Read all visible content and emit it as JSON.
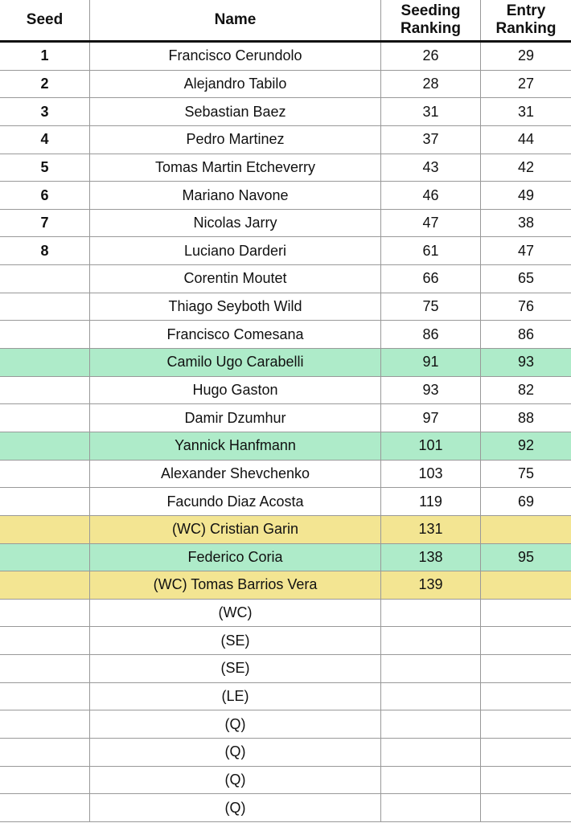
{
  "colors": {
    "green": "#aeebc9",
    "yellow": "#f3e592"
  },
  "headers": [
    "Seed",
    "Name",
    "Seeding Ranking",
    "Entry Ranking"
  ],
  "rows": [
    {
      "seed": "1",
      "name": "Francisco Cerundolo",
      "seeding": "26",
      "entry": "29",
      "hl": ""
    },
    {
      "seed": "2",
      "name": "Alejandro Tabilo",
      "seeding": "28",
      "entry": "27",
      "hl": ""
    },
    {
      "seed": "3",
      "name": "Sebastian Baez",
      "seeding": "31",
      "entry": "31",
      "hl": ""
    },
    {
      "seed": "4",
      "name": "Pedro Martinez",
      "seeding": "37",
      "entry": "44",
      "hl": ""
    },
    {
      "seed": "5",
      "name": "Tomas Martin Etcheverry",
      "seeding": "43",
      "entry": "42",
      "hl": ""
    },
    {
      "seed": "6",
      "name": "Mariano Navone",
      "seeding": "46",
      "entry": "49",
      "hl": ""
    },
    {
      "seed": "7",
      "name": "Nicolas Jarry",
      "seeding": "47",
      "entry": "38",
      "hl": ""
    },
    {
      "seed": "8",
      "name": "Luciano Darderi",
      "seeding": "61",
      "entry": "47",
      "hl": ""
    },
    {
      "seed": "",
      "name": "Corentin Moutet",
      "seeding": "66",
      "entry": "65",
      "hl": ""
    },
    {
      "seed": "",
      "name": "Thiago Seyboth Wild",
      "seeding": "75",
      "entry": "76",
      "hl": ""
    },
    {
      "seed": "",
      "name": "Francisco Comesana",
      "seeding": "86",
      "entry": "86",
      "hl": ""
    },
    {
      "seed": "",
      "name": "Camilo Ugo Carabelli",
      "seeding": "91",
      "entry": "93",
      "hl": "green"
    },
    {
      "seed": "",
      "name": "Hugo Gaston",
      "seeding": "93",
      "entry": "82",
      "hl": ""
    },
    {
      "seed": "",
      "name": "Damir Dzumhur",
      "seeding": "97",
      "entry": "88",
      "hl": ""
    },
    {
      "seed": "",
      "name": "Yannick Hanfmann",
      "seeding": "101",
      "entry": "92",
      "hl": "green"
    },
    {
      "seed": "",
      "name": "Alexander Shevchenko",
      "seeding": "103",
      "entry": "75",
      "hl": ""
    },
    {
      "seed": "",
      "name": "Facundo Diaz Acosta",
      "seeding": "119",
      "entry": "69",
      "hl": ""
    },
    {
      "seed": "",
      "name": "(WC) Cristian Garin",
      "seeding": "131",
      "entry": "",
      "hl": "yellow"
    },
    {
      "seed": "",
      "name": "Federico Coria",
      "seeding": "138",
      "entry": "95",
      "hl": "green"
    },
    {
      "seed": "",
      "name": "(WC) Tomas Barrios Vera",
      "seeding": "139",
      "entry": "",
      "hl": "yellow"
    },
    {
      "seed": "",
      "name": "(WC)",
      "seeding": "",
      "entry": "",
      "hl": ""
    },
    {
      "seed": "",
      "name": "(SE)",
      "seeding": "",
      "entry": "",
      "hl": ""
    },
    {
      "seed": "",
      "name": "(SE)",
      "seeding": "",
      "entry": "",
      "hl": ""
    },
    {
      "seed": "",
      "name": "(LE)",
      "seeding": "",
      "entry": "",
      "hl": ""
    },
    {
      "seed": "",
      "name": "(Q)",
      "seeding": "",
      "entry": "",
      "hl": ""
    },
    {
      "seed": "",
      "name": "(Q)",
      "seeding": "",
      "entry": "",
      "hl": ""
    },
    {
      "seed": "",
      "name": "(Q)",
      "seeding": "",
      "entry": "",
      "hl": ""
    },
    {
      "seed": "",
      "name": "(Q)",
      "seeding": "",
      "entry": "",
      "hl": ""
    }
  ]
}
